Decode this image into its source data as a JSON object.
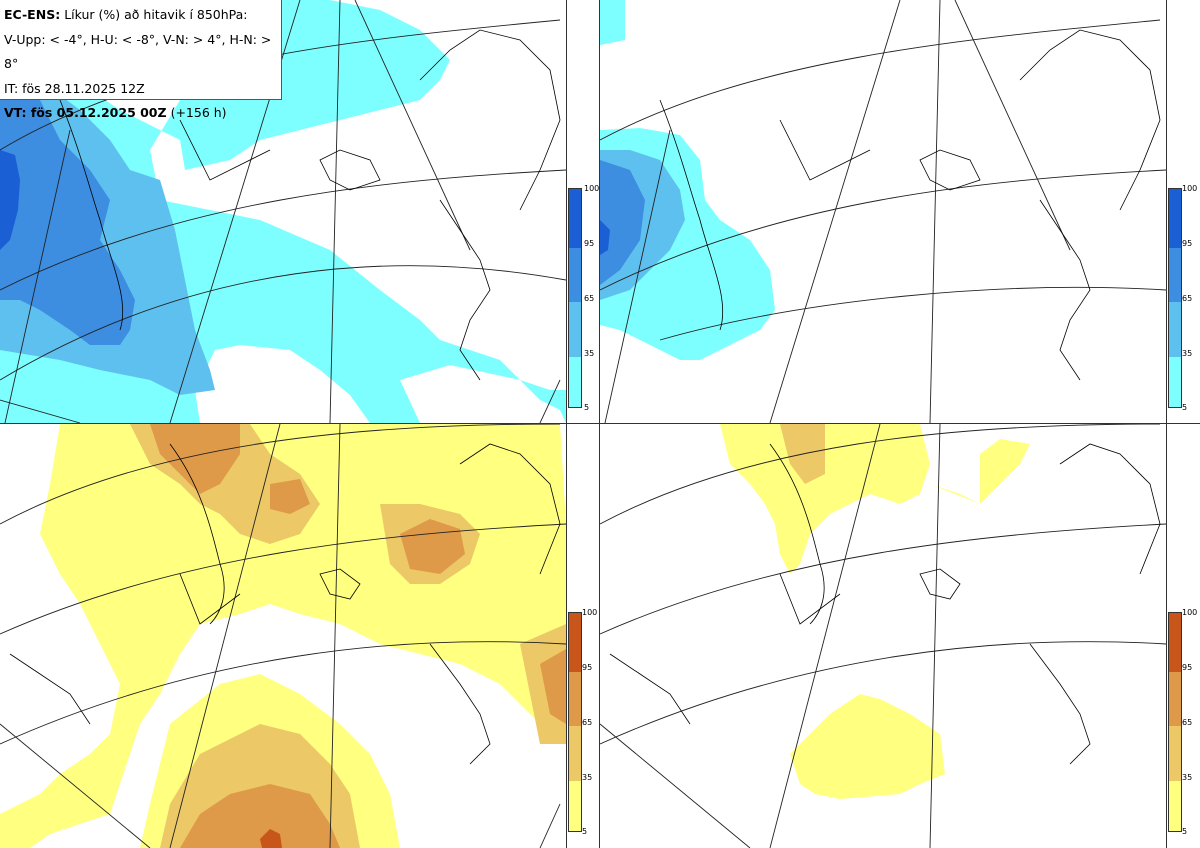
{
  "header": {
    "model_label": "EC-ENS:",
    "description": "Líkur (%) að hitavik í 850hPa:",
    "thresholds": "V-Upp: < -4°, H-U: < -8°, V-N: > 4°, H-N: > 8°",
    "init_time": "IT: fös 28.11.2025 12Z",
    "valid_label": "VT: fös 05.12.2025 00Z",
    "lead_time": "(+156 h)"
  },
  "colorbar_cold": {
    "ticks": [
      "100",
      "95",
      "65",
      "35",
      "5"
    ],
    "colors": [
      "#1a5fd4",
      "#3d8de0",
      "#5ec0ee",
      "#7effff"
    ]
  },
  "colorbar_warm": {
    "ticks": [
      "100",
      "95",
      "65",
      "35",
      "5"
    ],
    "colors": [
      "#c8561a",
      "#de9a48",
      "#ecc866",
      "#ffff80"
    ]
  },
  "colors": {
    "cold_1": "#7effff",
    "cold_2": "#5ec0ee",
    "cold_3": "#3d8de0",
    "cold_4": "#1a5fd4",
    "warm_1": "#ffff80",
    "warm_2": "#ecc866",
    "warm_3": "#de9a48",
    "warm_4": "#c8561a"
  }
}
